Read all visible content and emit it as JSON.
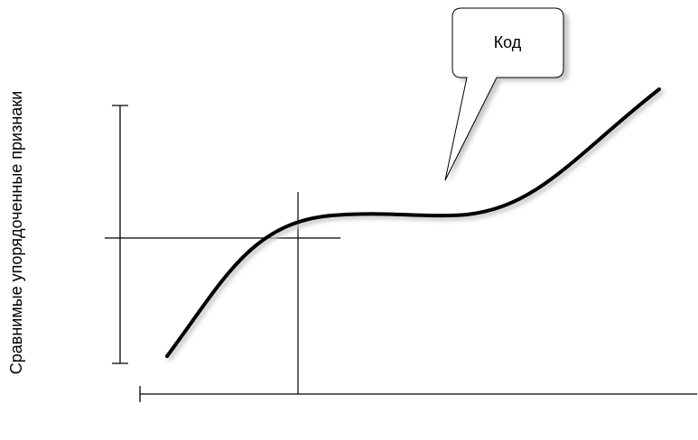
{
  "y_axis_label": "Сравнимые упорядоченные признаки",
  "callout": {
    "text": "Код"
  },
  "colors": {
    "line": "#000000",
    "callout_fill": "#ffffff",
    "shadow": "#c8c8c8"
  }
}
